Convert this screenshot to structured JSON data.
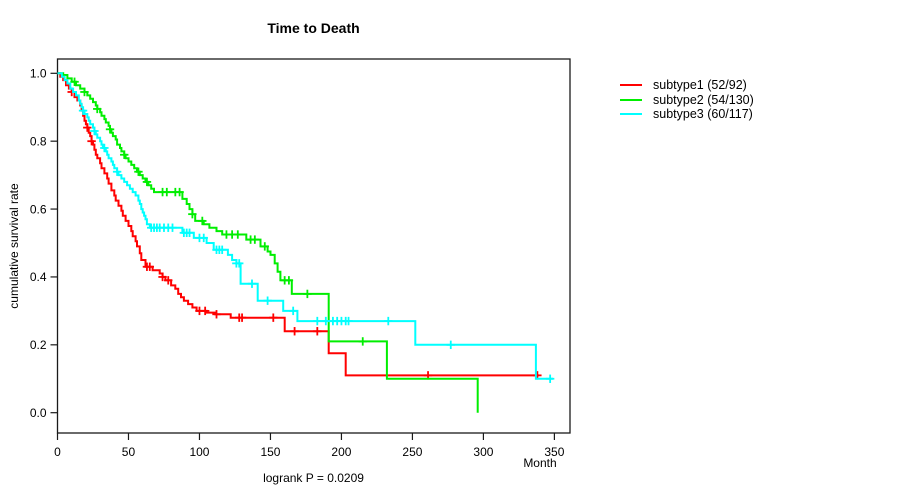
{
  "figure": {
    "title": "Time to Death",
    "footnote": "logrank P = 0.0209",
    "x_axis_label": "Month",
    "y_axis_label": "cumulative survival rate"
  },
  "chart_data": {
    "type": "line",
    "subtype": "kaplan-meier-step-curves",
    "title": "Time to Death",
    "xlabel": "Month",
    "ylabel": "cumulative survival rate",
    "annotation": "logrank P = 0.0209",
    "xlim": [
      0,
      361
    ],
    "ylim": [
      0,
      1
    ],
    "x_ticks": [
      0,
      50,
      100,
      150,
      200,
      250,
      300,
      350
    ],
    "y_ticks": [
      0,
      0.2,
      0.4,
      0.6,
      0.8,
      1.0
    ],
    "y_tick_labels": [
      "0.0",
      "0.2",
      "0.4",
      "0.6",
      "0.8",
      "1.0"
    ],
    "grid": false,
    "legend_position": "right-outside",
    "series": [
      {
        "name": "subtype1",
        "label": "subtype1 (52/92)",
        "events": 52,
        "n": 92,
        "color": "#ff0000",
        "end_time": 339,
        "steps": [
          [
            0,
            1
          ],
          [
            2,
            0.99
          ],
          [
            4,
            0.98
          ],
          [
            6,
            0.965
          ],
          [
            8,
            0.955
          ],
          [
            10,
            0.945
          ],
          [
            12,
            0.93
          ],
          [
            14,
            0.92
          ],
          [
            16,
            0.905
          ],
          [
            17,
            0.89
          ],
          [
            18,
            0.875
          ],
          [
            19,
            0.86
          ],
          [
            20,
            0.85
          ],
          [
            21,
            0.84
          ],
          [
            22,
            0.825
          ],
          [
            23,
            0.815
          ],
          [
            24,
            0.8
          ],
          [
            25,
            0.79
          ],
          [
            26,
            0.775
          ],
          [
            27,
            0.76
          ],
          [
            28,
            0.75
          ],
          [
            30,
            0.735
          ],
          [
            31,
            0.72
          ],
          [
            33,
            0.705
          ],
          [
            35,
            0.69
          ],
          [
            36,
            0.675
          ],
          [
            38,
            0.655
          ],
          [
            40,
            0.64
          ],
          [
            41,
            0.625
          ],
          [
            43,
            0.61
          ],
          [
            45,
            0.595
          ],
          [
            46,
            0.58
          ],
          [
            48,
            0.565
          ],
          [
            50,
            0.55
          ],
          [
            52,
            0.535
          ],
          [
            53,
            0.52
          ],
          [
            55,
            0.505
          ],
          [
            56,
            0.49
          ],
          [
            58,
            0.47
          ],
          [
            59,
            0.45
          ],
          [
            62,
            0.43
          ],
          [
            67,
            0.42
          ],
          [
            72,
            0.41
          ],
          [
            74,
            0.4
          ],
          [
            76,
            0.39
          ],
          [
            80,
            0.375
          ],
          [
            83,
            0.365
          ],
          [
            85,
            0.35
          ],
          [
            87,
            0.34
          ],
          [
            89,
            0.33
          ],
          [
            92,
            0.32
          ],
          [
            95,
            0.31
          ],
          [
            98,
            0.3
          ],
          [
            105,
            0.295
          ],
          [
            111,
            0.29
          ],
          [
            122,
            0.28
          ],
          [
            160,
            0.24
          ],
          [
            191,
            0.175
          ],
          [
            203,
            0.11
          ]
        ],
        "censor_times": [
          10,
          21,
          24,
          63,
          65,
          74,
          78,
          100,
          104,
          112,
          128,
          130,
          152,
          167,
          183,
          261,
          338
        ]
      },
      {
        "name": "subtype2",
        "label": "subtype2 (54/130)",
        "events": 54,
        "n": 130,
        "color": "#00ee00",
        "end_time": 296,
        "steps": [
          [
            0,
            1
          ],
          [
            4,
            0.995
          ],
          [
            7,
            0.985
          ],
          [
            10,
            0.975
          ],
          [
            13,
            0.965
          ],
          [
            16,
            0.955
          ],
          [
            19,
            0.945
          ],
          [
            21,
            0.935
          ],
          [
            23,
            0.925
          ],
          [
            25,
            0.915
          ],
          [
            27,
            0.905
          ],
          [
            28,
            0.895
          ],
          [
            30,
            0.885
          ],
          [
            31,
            0.875
          ],
          [
            33,
            0.865
          ],
          [
            34,
            0.855
          ],
          [
            36,
            0.845
          ],
          [
            37,
            0.835
          ],
          [
            38,
            0.825
          ],
          [
            39,
            0.815
          ],
          [
            41,
            0.805
          ],
          [
            42,
            0.79
          ],
          [
            44,
            0.78
          ],
          [
            45,
            0.77
          ],
          [
            47,
            0.76
          ],
          [
            48,
            0.75
          ],
          [
            50,
            0.74
          ],
          [
            52,
            0.73
          ],
          [
            54,
            0.72
          ],
          [
            56,
            0.71
          ],
          [
            58,
            0.7
          ],
          [
            60,
            0.69
          ],
          [
            62,
            0.68
          ],
          [
            64,
            0.67
          ],
          [
            66,
            0.66
          ],
          [
            68,
            0.65
          ],
          [
            88,
            0.63
          ],
          [
            91,
            0.615
          ],
          [
            93,
            0.6
          ],
          [
            95,
            0.585
          ],
          [
            97,
            0.565
          ],
          [
            103,
            0.555
          ],
          [
            107,
            0.545
          ],
          [
            112,
            0.535
          ],
          [
            116,
            0.525
          ],
          [
            133,
            0.51
          ],
          [
            143,
            0.49
          ],
          [
            148,
            0.475
          ],
          [
            150,
            0.465
          ],
          [
            153,
            0.44
          ],
          [
            155,
            0.415
          ],
          [
            157,
            0.39
          ],
          [
            165,
            0.35
          ],
          [
            191,
            0.21
          ],
          [
            232,
            0.1
          ],
          [
            296,
            0
          ]
        ],
        "censor_times": [
          12,
          19,
          28,
          37,
          47,
          57,
          63,
          74,
          77,
          83,
          86,
          95,
          102,
          119,
          123,
          127,
          136,
          139,
          146,
          160,
          163,
          176,
          215
        ]
      },
      {
        "name": "subtype3",
        "label": "subtype3 (60/117)",
        "events": 60,
        "n": 117,
        "color": "#00ffff",
        "end_time": 349,
        "steps": [
          [
            0,
            1
          ],
          [
            3,
            0.99
          ],
          [
            5,
            0.98
          ],
          [
            7,
            0.97
          ],
          [
            9,
            0.955
          ],
          [
            11,
            0.945
          ],
          [
            13,
            0.935
          ],
          [
            15,
            0.92
          ],
          [
            16,
            0.91
          ],
          [
            17,
            0.9
          ],
          [
            18,
            0.89
          ],
          [
            19,
            0.88
          ],
          [
            21,
            0.87
          ],
          [
            22,
            0.86
          ],
          [
            23,
            0.85
          ],
          [
            25,
            0.84
          ],
          [
            26,
            0.83
          ],
          [
            27,
            0.82
          ],
          [
            28,
            0.81
          ],
          [
            30,
            0.8
          ],
          [
            31,
            0.79
          ],
          [
            32,
            0.78
          ],
          [
            34,
            0.77
          ],
          [
            35,
            0.76
          ],
          [
            36,
            0.75
          ],
          [
            38,
            0.74
          ],
          [
            39,
            0.73
          ],
          [
            40,
            0.72
          ],
          [
            42,
            0.71
          ],
          [
            43,
            0.7
          ],
          [
            45,
            0.69
          ],
          [
            47,
            0.68
          ],
          [
            49,
            0.67
          ],
          [
            51,
            0.66
          ],
          [
            53,
            0.65
          ],
          [
            55,
            0.64
          ],
          [
            57,
            0.625
          ],
          [
            58,
            0.615
          ],
          [
            59,
            0.6
          ],
          [
            60,
            0.59
          ],
          [
            61,
            0.58
          ],
          [
            62,
            0.57
          ],
          [
            63,
            0.555
          ],
          [
            65,
            0.545
          ],
          [
            88,
            0.53
          ],
          [
            96,
            0.515
          ],
          [
            105,
            0.5
          ],
          [
            110,
            0.48
          ],
          [
            120,
            0.465
          ],
          [
            123,
            0.45
          ],
          [
            126,
            0.44
          ],
          [
            129,
            0.38
          ],
          [
            141,
            0.33
          ],
          [
            159,
            0.3
          ],
          [
            169,
            0.27
          ],
          [
            252,
            0.2
          ],
          [
            337,
            0.1
          ]
        ],
        "censor_times": [
          18,
          26,
          33,
          42,
          66,
          68,
          70,
          72,
          75,
          78,
          81,
          89,
          91,
          93,
          100,
          103,
          112,
          114,
          116,
          126,
          128,
          137,
          148,
          166,
          183,
          189,
          194,
          197,
          200,
          203,
          205,
          233,
          277,
          347
        ]
      }
    ]
  }
}
